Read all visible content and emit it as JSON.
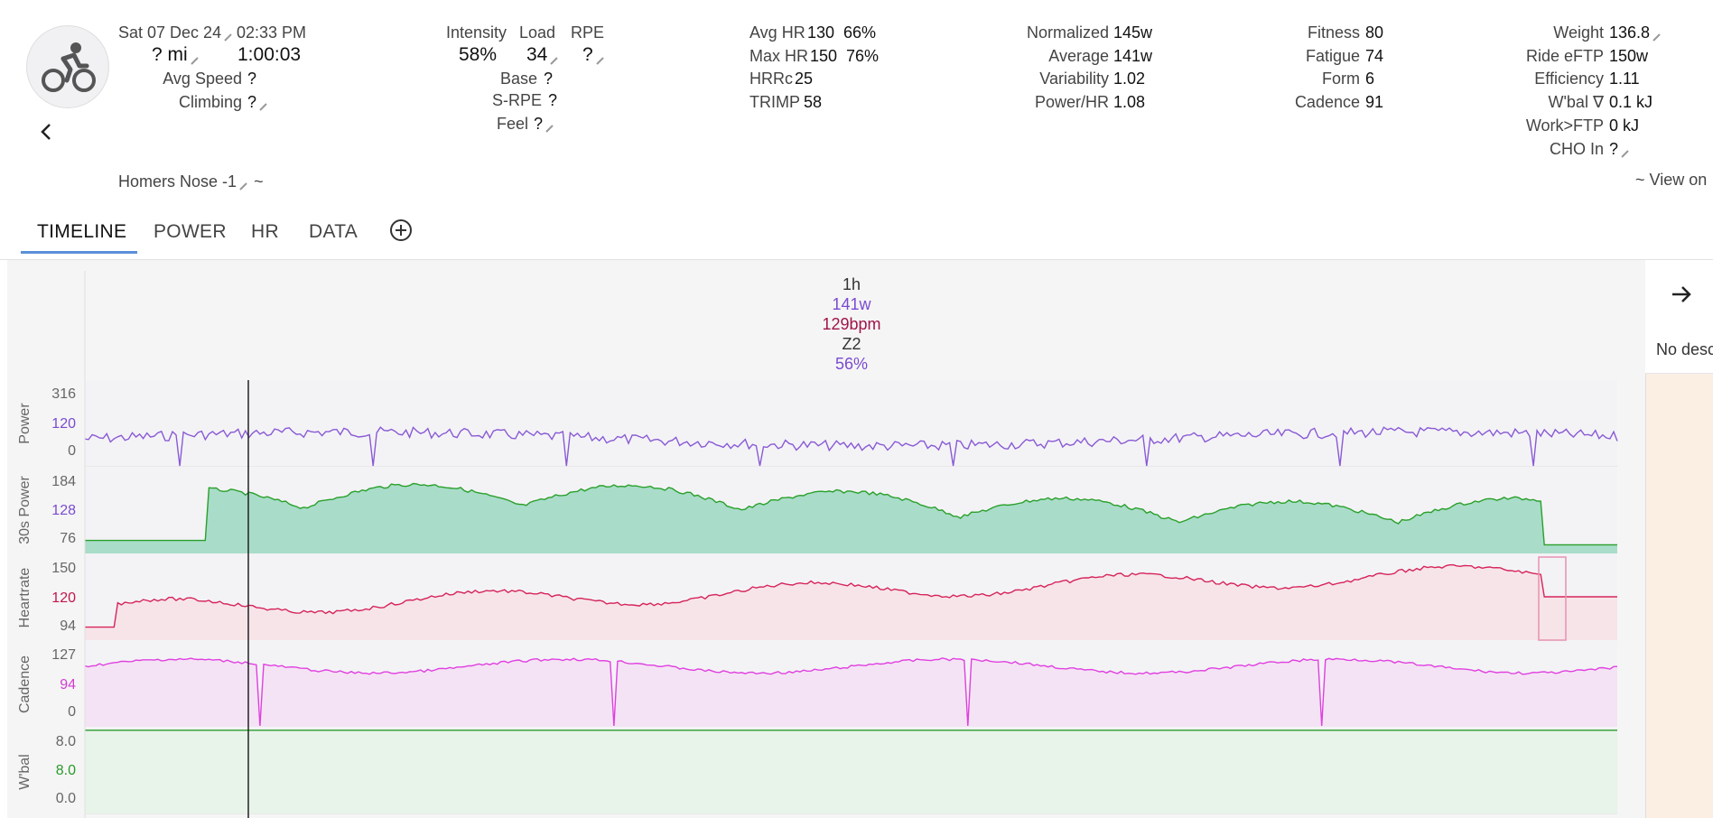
{
  "header": {
    "date": "Sat 07 Dec 24",
    "time": "02:33 PM",
    "distance": "? mi",
    "duration": "1:00:03",
    "avg_speed_label": "Avg Speed",
    "avg_speed_value": "?",
    "climbing_label": "Climbing",
    "climbing_value": "?",
    "intensity_label": "Intensity",
    "intensity_value": "58%",
    "load_label": "Load",
    "load_value": "34",
    "rpe_label": "RPE",
    "rpe_value": "?",
    "base_label": "Base",
    "base_value": "?",
    "srpe_label": "S-RPE",
    "srpe_value": "?",
    "feel_label": "Feel",
    "feel_value": "?",
    "avg_hr_label": "Avg HR",
    "avg_hr_value": "130",
    "avg_hr_pct": "66%",
    "max_hr_label": "Max HR",
    "max_hr_value": "150",
    "max_hr_pct": "76%",
    "hrrc_label": "HRRc",
    "hrrc_value": "25",
    "trimp_label": "TRIMP",
    "trimp_value": "58",
    "normalized_label": "Normalized",
    "normalized_value": "145w",
    "average_label": "Average",
    "average_value": "141w",
    "variability_label": "Variability",
    "variability_value": "1.02",
    "powerhr_label": "Power/HR",
    "powerhr_value": "1.08",
    "fitness_label": "Fitness",
    "fitness_value": "80",
    "fatigue_label": "Fatigue",
    "fatigue_value": "74",
    "form_label": "Form",
    "form_value": "6",
    "cadence_label": "Cadence",
    "cadence_value": "91",
    "weight_label": "Weight",
    "weight_value": "136.8",
    "eftp_label": "Ride eFTP",
    "eftp_value": "150w",
    "efficiency_label": "Efficiency",
    "efficiency_value": "1.11",
    "wbal_label": "W'bal ∇",
    "wbal_value": "0.1 kJ",
    "workftp_label": "Work>FTP",
    "workftp_value": "0 kJ",
    "cho_label": "CHO In",
    "cho_value": "?",
    "activity_name": "Homers Nose -1",
    "activity_tilde": "~",
    "view_on": "~ View on"
  },
  "tabs": [
    {
      "label": "TIMELINE"
    },
    {
      "label": "POWER"
    },
    {
      "label": "HR"
    },
    {
      "label": "DATA"
    }
  ],
  "summary": {
    "duration": "1h",
    "power": "141w",
    "hr": "129bpm",
    "zone": "Z2",
    "pct": "56%"
  },
  "side_panel": {
    "description": "No desc"
  },
  "colors": {
    "power": "#8a5ad4",
    "power30": "#2aa02a",
    "hr": "#d6245a",
    "cadence": "#e040e0",
    "wbal": "#2a9a2a",
    "tab_underline": "#5b8fd8"
  },
  "chart_data": [
    {
      "type": "line",
      "name": "Power",
      "ylabel": "Power",
      "ticks": [
        "316",
        "120",
        "0"
      ],
      "ylim": [
        0,
        316
      ],
      "highlight": "120"
    },
    {
      "type": "area",
      "name": "30s Power",
      "ylabel": "30s Power",
      "ticks": [
        "184",
        "128",
        "76"
      ],
      "ylim": [
        76,
        184
      ],
      "highlight": "128"
    },
    {
      "type": "area",
      "name": "Heartrate",
      "ylabel": "Heartrate",
      "ticks": [
        "150",
        "120",
        "94"
      ],
      "ylim": [
        94,
        150
      ],
      "highlight": "120"
    },
    {
      "type": "area",
      "name": "Cadence",
      "ylabel": "Cadence",
      "ticks": [
        "127",
        "94",
        "0"
      ],
      "ylim": [
        0,
        127
      ],
      "highlight": "94"
    },
    {
      "type": "area",
      "name": "W'bal",
      "ylabel": "W'bal",
      "ticks": [
        "8.0",
        "8.0",
        "0.0"
      ],
      "ylim": [
        0,
        8
      ],
      "highlight": "8.0"
    }
  ]
}
